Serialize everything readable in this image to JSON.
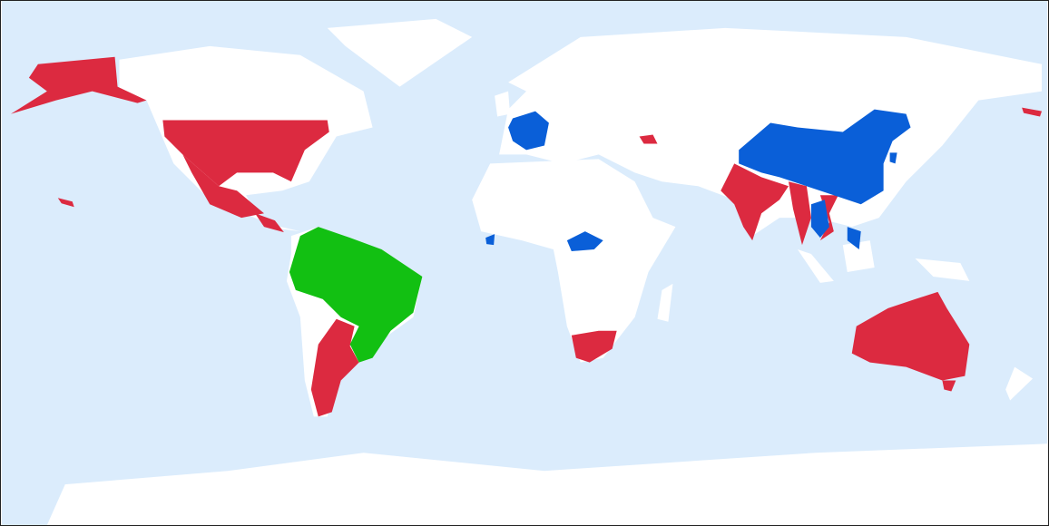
{
  "map": {
    "projection": "equirectangular",
    "colors": {
      "ocean": "#dbecfc",
      "land": "#ffffff",
      "red_group": "#dc2a40",
      "blue_group": "#0a5fd8",
      "green_group": "#12c012",
      "border": "#222222"
    }
  }
}
